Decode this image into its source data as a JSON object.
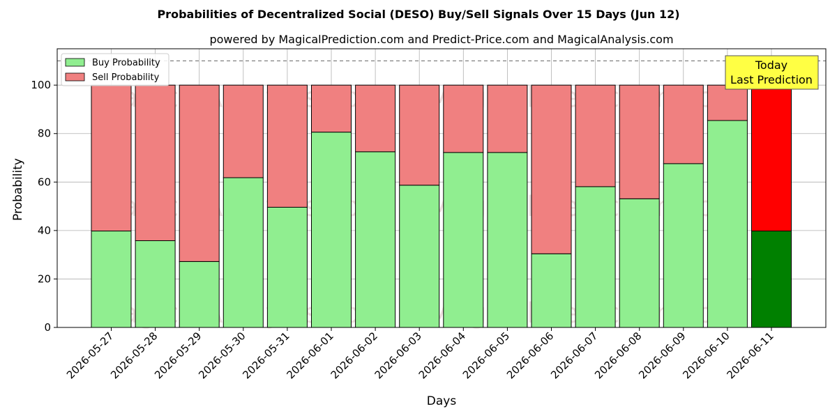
{
  "chart_data": {
    "type": "bar",
    "stacked": true,
    "title": "Probabilities of Decentralized Social (DESO) Buy/Sell Signals Over 15 Days (Jun 12)",
    "subtitle": "powered by MagicalPrediction.com and Predict-Price.com and MagicalAnalysis.com",
    "xlabel": "Days",
    "ylabel": "Probability",
    "ylim": [
      0,
      115
    ],
    "yticks": [
      0,
      20,
      40,
      60,
      80,
      100
    ],
    "reference_line": 110,
    "grid": true,
    "legend_position": "top-left",
    "categories": [
      "2026-05-27",
      "2026-05-28",
      "2026-05-29",
      "2026-05-30",
      "2026-05-31",
      "2026-06-01",
      "2026-06-02",
      "2026-06-03",
      "2026-06-04",
      "2026-06-05",
      "2026-06-06",
      "2026-06-07",
      "2026-06-08",
      "2026-06-09",
      "2026-06-10",
      "2026-06-11"
    ],
    "series": [
      {
        "name": "Buy Probability",
        "color": "#90ee90",
        "values": [
          39.8,
          35.8,
          27.2,
          61.8,
          49.6,
          80.6,
          72.5,
          58.7,
          72.2,
          72.2,
          30.4,
          58.1,
          53.1,
          67.6,
          85.4,
          39.8
        ]
      },
      {
        "name": "Sell Probability",
        "color": "#f08080",
        "values": [
          60.2,
          64.2,
          72.8,
          38.2,
          50.4,
          19.4,
          27.5,
          41.3,
          27.8,
          27.8,
          69.6,
          41.9,
          46.9,
          32.4,
          14.6,
          60.2
        ]
      }
    ],
    "highlight": {
      "index": 15,
      "buy_color": "#008000",
      "sell_color": "#ff0000"
    },
    "annotation": {
      "line1": "Today",
      "line2": "Last Prediction",
      "color": "#ffff44"
    },
    "watermarks": [
      "MagicalAnalysis.com",
      "MagicalPrediction.com"
    ]
  }
}
